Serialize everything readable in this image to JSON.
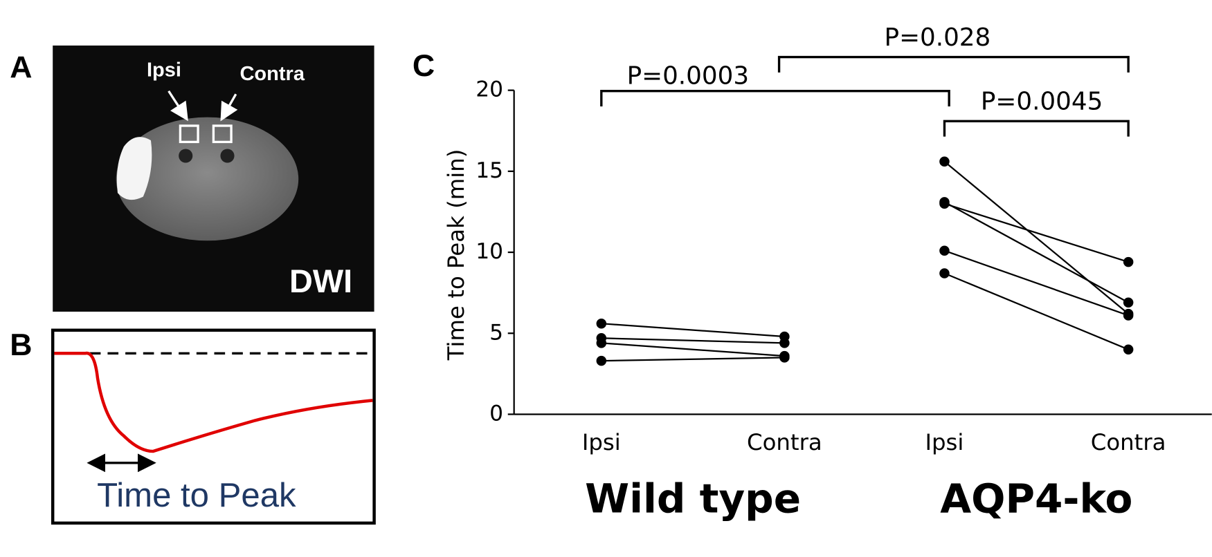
{
  "panels": {
    "A": {
      "label": "A",
      "roi_labels": [
        "Ipsi",
        "Contra"
      ],
      "image_label": "DWI"
    },
    "B": {
      "label": "B",
      "caption": "Time to Peak"
    }
  },
  "chart_data": {
    "type": "line",
    "panel_label": "C",
    "y_label": "Time to Peak (min)",
    "categories": [
      "Ipsi",
      "Contra",
      "Ipsi",
      "Contra"
    ],
    "groups": [
      "Wild type",
      "AQP4-ko"
    ],
    "ylim": [
      0,
      20
    ],
    "yticks": [
      0,
      5,
      10,
      15,
      20
    ],
    "series": [
      {
        "color": "#000000",
        "values": [
          5.6,
          4.8,
          null,
          null
        ]
      },
      {
        "color": "#000000",
        "values": [
          4.7,
          4.4,
          null,
          null
        ]
      },
      {
        "color": "#000000",
        "values": [
          4.4,
          3.6,
          null,
          null
        ]
      },
      {
        "color": "#000000",
        "values": [
          3.3,
          3.5,
          null,
          null
        ]
      },
      {
        "color": "#000000",
        "values": [
          null,
          null,
          15.6,
          6.2
        ]
      },
      {
        "color": "#000000",
        "values": [
          null,
          null,
          13.0,
          9.4
        ]
      },
      {
        "color": "#000000",
        "values": [
          null,
          null,
          13.1,
          6.9
        ]
      },
      {
        "color": "#000000",
        "values": [
          null,
          null,
          10.1,
          6.1
        ]
      },
      {
        "color": "#000000",
        "values": [
          null,
          null,
          8.7,
          4.0
        ]
      }
    ],
    "annotations": [
      "P=0.0003",
      "P=0.028",
      "P=0.0045"
    ]
  }
}
